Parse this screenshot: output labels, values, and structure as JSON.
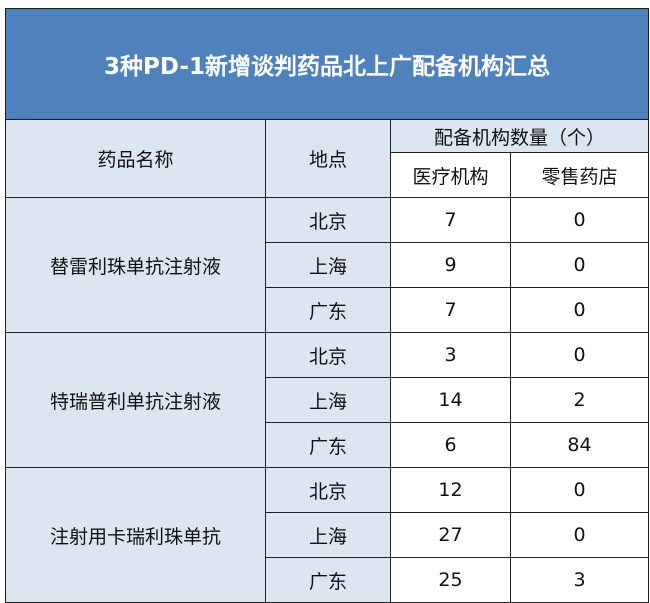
{
  "title": "3种PD-1新增谈判药品北上广配备机构汇总",
  "headers": {
    "drug": "药品名称",
    "place": "地点",
    "count_group": "配备机构数量（个）",
    "medical": "医疗机构",
    "retail": "零售药店"
  },
  "colors": {
    "title_bg": "#4f81bd",
    "header_bg": "#dce6f1"
  },
  "drugs": [
    {
      "name": "替雷利珠单抗注射液",
      "rows": [
        {
          "place": "北京",
          "medical": "7",
          "retail": "0"
        },
        {
          "place": "上海",
          "medical": "9",
          "retail": "0"
        },
        {
          "place": "广东",
          "medical": "7",
          "retail": "0"
        }
      ]
    },
    {
      "name": "特瑞普利单抗注射液",
      "rows": [
        {
          "place": "北京",
          "medical": "3",
          "retail": "0"
        },
        {
          "place": "上海",
          "medical": "14",
          "retail": "2"
        },
        {
          "place": "广东",
          "medical": "6",
          "retail": "84"
        }
      ]
    },
    {
      "name": "注射用卡瑞利珠单抗",
      "rows": [
        {
          "place": "北京",
          "medical": "12",
          "retail": "0"
        },
        {
          "place": "上海",
          "medical": "27",
          "retail": "0"
        },
        {
          "place": "广东",
          "medical": "25",
          "retail": "3"
        }
      ]
    }
  ]
}
